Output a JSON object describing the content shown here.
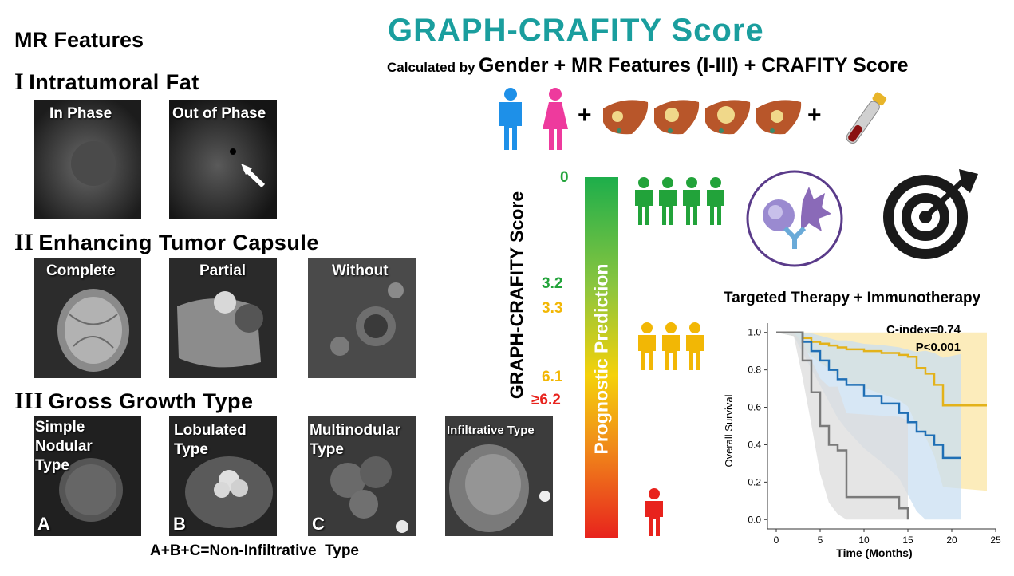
{
  "left": {
    "heading": "MR Features",
    "sections": [
      {
        "roman": "I",
        "title": "Intratumoral Fat",
        "images": [
          "In Phase",
          "Out of Phase"
        ]
      },
      {
        "roman": "II",
        "title": "Enhancing Tumor Capsule",
        "images": [
          "Complete",
          "Partial",
          "Without"
        ]
      },
      {
        "roman": "III",
        "title": "Gross Growth Type",
        "images": [
          "Simple Nodular Type",
          "Lobulated Type",
          "Multinodular Type",
          "Infiltrative Type"
        ],
        "letters": [
          "A",
          "B",
          "C"
        ]
      }
    ],
    "footer": "A+B+C=Non-Infiltrative  Type"
  },
  "header": {
    "title": "GRAPH-CRAFITY Score",
    "calc_prefix": "Calculated by",
    "calc_formula": "Gender + MR Features (I-III) + CRAFITY Score",
    "plus": "+"
  },
  "icons": [
    "male-person-icon",
    "female-person-icon",
    "liver-icon",
    "blood-tube-icon",
    "person-group-icon",
    "immune-cell-icon",
    "target-icon"
  ],
  "score_scale": {
    "axis_label": "GRAPH-CRAFITY Score",
    "bar_label": "Prognostic Prediction",
    "values": [
      "0",
      "3.2",
      "3.3",
      "6.1",
      "≥6.2"
    ],
    "colors": {
      "green": "#22a33a",
      "yellow": "#f2b705",
      "red": "#e8231d"
    }
  },
  "therapy": {
    "label": "Targeted Therapy + Immunotherapy"
  },
  "chart_data": {
    "type": "line",
    "title": "",
    "xlabel": "Time (Months)",
    "ylabel": "Overall Survival",
    "xlim": [
      -1,
      25
    ],
    "ylim": [
      -0.05,
      1.05
    ],
    "xticks": [
      "0",
      "5",
      "10",
      "15",
      "20",
      "25"
    ],
    "yticks": [
      "0.0",
      "0.2",
      "0.4",
      "0.6",
      "0.8",
      "1.0"
    ],
    "annotations": [
      "C-index=0.74",
      "P<0.001"
    ],
    "grid": false,
    "series": [
      {
        "color": "#e3b21a",
        "x": [
          0,
          2,
          3,
          4,
          5,
          6,
          7,
          8,
          10,
          12,
          14,
          15,
          16,
          17,
          18,
          19,
          24
        ],
        "y": [
          1.0,
          1.0,
          0.97,
          0.95,
          0.94,
          0.93,
          0.92,
          0.91,
          0.9,
          0.89,
          0.88,
          0.87,
          0.81,
          0.78,
          0.72,
          0.61,
          0.61
        ]
      },
      {
        "color": "#1f6fb5",
        "x": [
          0,
          2,
          3,
          4,
          5,
          6,
          7,
          8,
          10,
          12,
          14,
          15,
          16,
          17,
          18,
          19,
          21
        ],
        "y": [
          1.0,
          1.0,
          0.95,
          0.9,
          0.85,
          0.8,
          0.75,
          0.72,
          0.66,
          0.62,
          0.57,
          0.52,
          0.47,
          0.45,
          0.4,
          0.33,
          0.33
        ]
      },
      {
        "color": "#7a7a7a",
        "x": [
          0,
          2,
          3,
          4,
          5,
          6,
          7,
          8,
          14,
          15
        ],
        "y": [
          1.0,
          1.0,
          0.85,
          0.68,
          0.5,
          0.4,
          0.37,
          0.12,
          0.06,
          0.0
        ]
      }
    ]
  }
}
